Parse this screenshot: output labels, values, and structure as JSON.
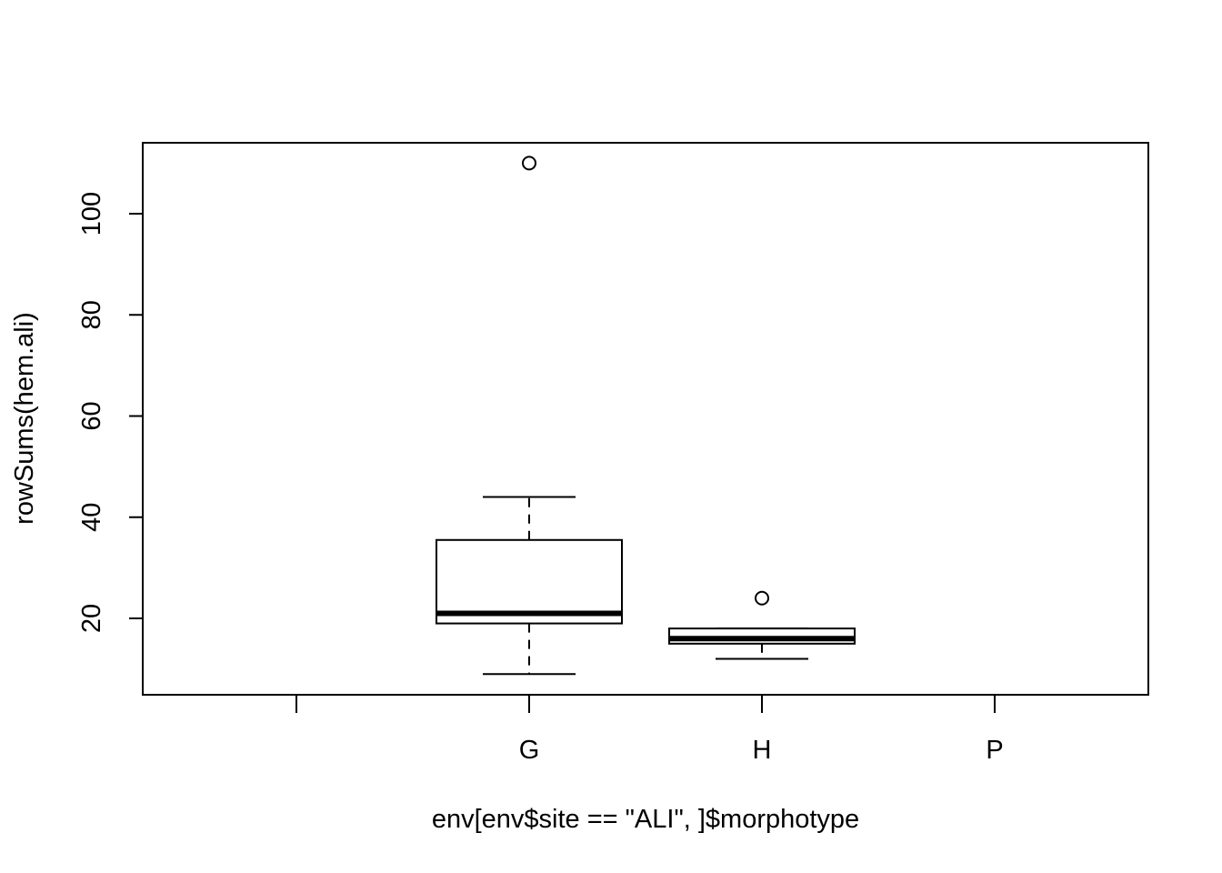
{
  "chart_data": {
    "type": "boxplot",
    "title": "",
    "xlabel": "env[env$site == \"ALI\", ]$morphotype",
    "ylabel": "rowSums(hem.ali)",
    "categories": [
      "",
      "G",
      "H",
      "P"
    ],
    "ylim": [
      5,
      114
    ],
    "yticks": [
      20,
      40,
      60,
      80,
      100
    ],
    "ytick_labels": [
      "20",
      "40",
      "60",
      "80",
      "100"
    ],
    "grid": false,
    "boxes": [
      {
        "category": "",
        "empty": true
      },
      {
        "category": "G",
        "whisker_low": 9,
        "q1": 19,
        "median": 21,
        "q3": 35.5,
        "whisker_high": 44,
        "outliers": [
          110
        ]
      },
      {
        "category": "H",
        "whisker_low": 12,
        "q1": 15,
        "median": 16,
        "q3": 18,
        "whisker_high": 18,
        "outliers": [
          24
        ]
      },
      {
        "category": "P",
        "empty": true
      }
    ]
  }
}
